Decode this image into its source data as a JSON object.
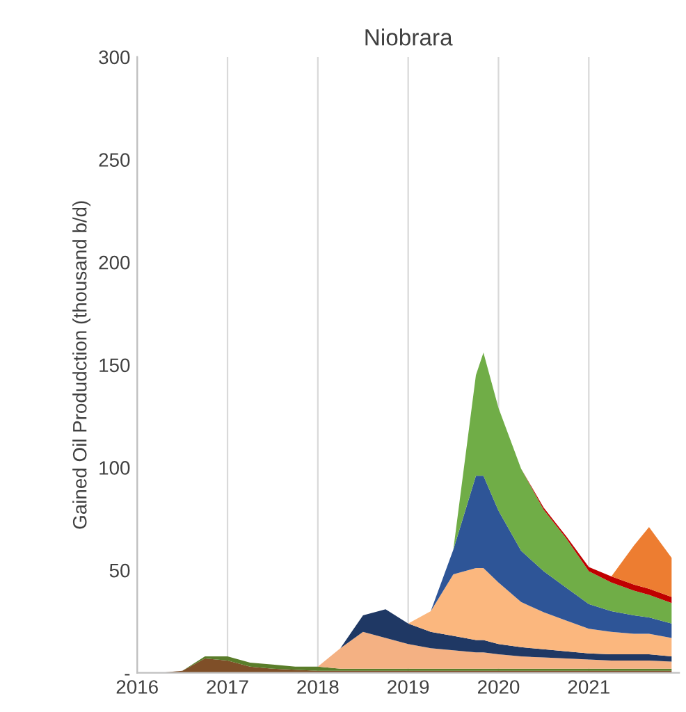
{
  "chart_data": {
    "type": "area",
    "stacked": true,
    "title": "Niobrara",
    "ylabel": "Gained Oil Produdction (thousand b/d)",
    "x": [
      "2016-01",
      "2016-04",
      "2016-07",
      "2016-10",
      "2017-01",
      "2017-04",
      "2017-07",
      "2017-10",
      "2018-01",
      "2018-04",
      "2018-07",
      "2018-10",
      "2019-01",
      "2019-04",
      "2019-07",
      "2019-10",
      "2019-11",
      "2020-01",
      "2020-04",
      "2020-07",
      "2020-10",
      "2021-01",
      "2021-04",
      "2021-07",
      "2021-09",
      "2021-12"
    ],
    "series": [
      {
        "color": "#7f4f28",
        "values": [
          0,
          0,
          1,
          7,
          6,
          3,
          2,
          1.5,
          1,
          1,
          1,
          1,
          1,
          1,
          1,
          1,
          1,
          1,
          1,
          1,
          1,
          1,
          1,
          1,
          1,
          1
        ]
      },
      {
        "color": "#5a7d2a",
        "values": [
          0,
          0,
          0,
          1,
          2,
          2,
          2,
          1.5,
          2,
          1,
          1,
          1,
          1,
          1,
          1,
          1,
          1,
          1,
          1,
          1,
          1,
          1,
          1,
          1,
          1,
          1
        ]
      },
      {
        "color": "#f4b183",
        "values": [
          0,
          0,
          0,
          0,
          0,
          0,
          0,
          0,
          0,
          10,
          18,
          15,
          12,
          10,
          9,
          8,
          8,
          7,
          6,
          5.5,
          5,
          4.5,
          4,
          4,
          4,
          3.5
        ]
      },
      {
        "color": "#1f3864",
        "values": [
          0,
          0,
          0,
          0,
          0,
          0,
          0,
          0,
          0,
          0,
          8,
          14,
          10,
          8,
          7,
          6,
          6,
          5,
          4.5,
          4,
          3.5,
          3,
          3,
          3,
          3,
          2.5
        ]
      },
      {
        "color": "#fbb77e",
        "values": [
          0,
          0,
          0,
          0,
          0,
          0,
          0,
          0,
          0,
          0,
          0,
          0,
          0,
          10,
          30,
          35,
          35,
          30,
          22,
          18,
          15,
          12,
          11,
          10,
          10,
          9
        ]
      },
      {
        "color": "#2e5597",
        "values": [
          0,
          0,
          0,
          0,
          0,
          0,
          0,
          0,
          0,
          0,
          0,
          0,
          0,
          0,
          12,
          45,
          45,
          35,
          25,
          20,
          16,
          12,
          10,
          9,
          8,
          7
        ]
      },
      {
        "color": "#70ad47",
        "values": [
          0,
          0,
          0,
          0,
          0,
          0,
          0,
          0,
          0,
          0,
          0,
          0,
          0,
          0,
          0,
          49,
          60,
          50,
          40,
          30,
          24,
          16,
          14,
          12,
          11,
          10
        ]
      },
      {
        "color": "#c00000",
        "values": [
          null,
          null,
          null,
          null,
          null,
          null,
          null,
          null,
          null,
          null,
          null,
          null,
          null,
          null,
          null,
          null,
          null,
          null,
          0,
          1,
          1,
          2,
          3,
          3,
          3,
          3
        ]
      },
      {
        "color": "#ed7d31",
        "values": [
          null,
          null,
          null,
          null,
          null,
          null,
          null,
          null,
          null,
          null,
          null,
          null,
          null,
          null,
          null,
          null,
          null,
          null,
          null,
          null,
          null,
          null,
          0,
          19,
          30,
          19
        ]
      }
    ],
    "xlim": [
      "2016-01",
      "2022-01"
    ],
    "xticks": [
      {
        "value": "2016-01",
        "label": "2016"
      },
      {
        "value": "2017-01",
        "label": "2017"
      },
      {
        "value": "2018-01",
        "label": "2018"
      },
      {
        "value": "2019-01",
        "label": "2019"
      },
      {
        "value": "2020-01",
        "label": "2020"
      },
      {
        "value": "2021-01",
        "label": "2021"
      }
    ],
    "ylim": [
      0,
      300
    ],
    "yticks": [
      {
        "value": 0,
        "label": "-"
      },
      50,
      100,
      150,
      200,
      250,
      300
    ],
    "grid": "x"
  }
}
